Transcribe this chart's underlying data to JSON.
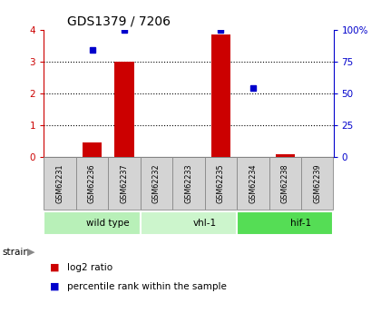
{
  "title": "GDS1379 / 7206",
  "samples": [
    "GSM62231",
    "GSM62236",
    "GSM62237",
    "GSM62232",
    "GSM62233",
    "GSM62235",
    "GSM62234",
    "GSM62238",
    "GSM62239"
  ],
  "log2_ratio": [
    0.0,
    0.45,
    3.0,
    0.0,
    0.0,
    3.85,
    0.0,
    0.07,
    0.0
  ],
  "percentile_rank_pct": [
    null,
    84.0,
    100.0,
    null,
    null,
    100.0,
    54.0,
    null,
    null
  ],
  "groups": [
    {
      "label": "wild type",
      "start": 0,
      "end": 3,
      "color": "#b8f0b8"
    },
    {
      "label": "vhl-1",
      "start": 3,
      "end": 6,
      "color": "#ccf5cc"
    },
    {
      "label": "hif-1",
      "start": 6,
      "end": 9,
      "color": "#55dd55"
    }
  ],
  "ylim_left": [
    0,
    4
  ],
  "ylim_right": [
    0,
    100
  ],
  "yticks_left": [
    0,
    1,
    2,
    3,
    4
  ],
  "yticks_right": [
    0,
    25,
    50,
    75,
    100
  ],
  "bar_color": "#cc0000",
  "dot_color": "#0000cc",
  "grid_color": "#000000",
  "axis_color_left": "#cc0000",
  "axis_color_right": "#0000cc",
  "background": "#ffffff",
  "sample_box_color": "#d4d4d4",
  "sample_box_edge": "#888888"
}
